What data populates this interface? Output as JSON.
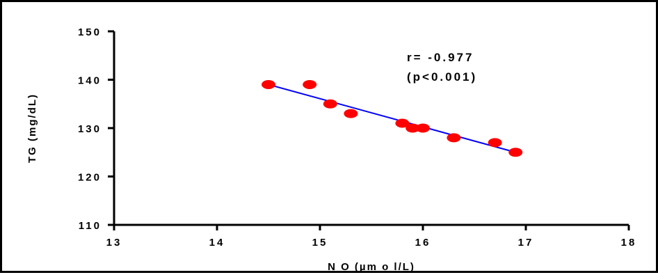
{
  "chart_data": {
    "type": "scatter",
    "title": "",
    "xlabel": "N O (µm o l/L)",
    "ylabel": "TG (mg/dL)",
    "xlim": [
      13,
      18
    ],
    "ylim": [
      110,
      150
    ],
    "x_ticks": [
      "13",
      "14",
      "15",
      "16",
      "17",
      "18"
    ],
    "y_ticks": [
      "110",
      "120",
      "130",
      "140",
      "150"
    ],
    "grid": false,
    "legend": "none",
    "series": [
      {
        "points": [
          {
            "x": 14.5,
            "y": 139
          },
          {
            "x": 14.9,
            "y": 139
          },
          {
            "x": 15.1,
            "y": 135
          },
          {
            "x": 15.3,
            "y": 133
          },
          {
            "x": 15.8,
            "y": 131
          },
          {
            "x": 15.9,
            "y": 130
          },
          {
            "x": 16.0,
            "y": 130
          },
          {
            "x": 16.3,
            "y": 128
          },
          {
            "x": 16.7,
            "y": 127
          },
          {
            "x": 16.9,
            "y": 125
          }
        ],
        "color": "#ff0000"
      }
    ],
    "regression_line": {
      "x": [
        14.5,
        16.9
      ],
      "y": [
        139.0,
        125.0
      ],
      "color": "#0000ff"
    },
    "annotations": {
      "r_text": "r= -0.977",
      "p_text": "(p<0.001)"
    }
  }
}
